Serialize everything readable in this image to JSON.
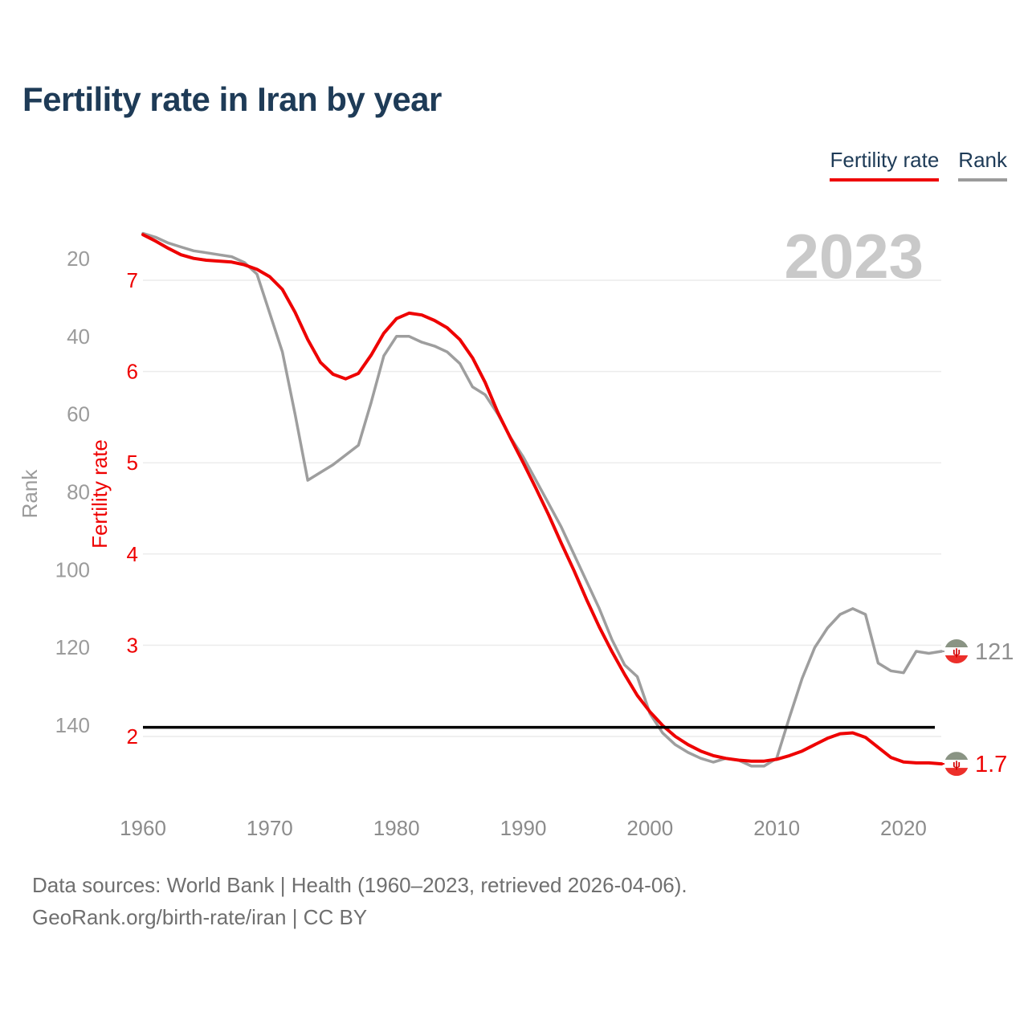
{
  "header": {
    "title": "Fertility rate in Iran by year"
  },
  "legend": [
    {
      "label": "Fertility rate",
      "color": "#ee0000"
    },
    {
      "label": "Rank",
      "color": "#9b9b9b"
    }
  ],
  "footer": {
    "line1": "Data sources: World Bank | Health (1960–2023, retrieved 2026-04-06).",
    "line2": "GeoRank.org/birth-rate/iran | CC BY"
  },
  "colors": {
    "accent_red": "#ee0000",
    "rank_gray": "#9e9e9e",
    "tick_gray": "#9b9b9b",
    "xtick_gray": "#8c8c8c",
    "gridline": "#ececec",
    "watermark_gray": "#c9c9c9",
    "title_navy": "#1e3b57",
    "reference_black": "#000000",
    "flag_green": "#8a9484",
    "flag_white": "#ffffff",
    "flag_red": "#ec2f2a",
    "flag_emblem": "#d40000"
  },
  "chart_data": {
    "type": "line",
    "title": "Fertility rate in Iran by year",
    "year_label": "2023",
    "x_label": "",
    "x_ticks": [
      1960,
      1970,
      1980,
      1990,
      2000,
      2010,
      2020
    ],
    "years": [
      1960,
      1961,
      1962,
      1963,
      1964,
      1965,
      1966,
      1967,
      1968,
      1969,
      1970,
      1971,
      1972,
      1973,
      1974,
      1975,
      1976,
      1977,
      1978,
      1979,
      1980,
      1981,
      1982,
      1983,
      1984,
      1985,
      1986,
      1987,
      1988,
      1989,
      1990,
      1991,
      1992,
      1993,
      1994,
      1995,
      1996,
      1997,
      1998,
      1999,
      2000,
      2001,
      2002,
      2003,
      2004,
      2005,
      2006,
      2007,
      2008,
      2009,
      2010,
      2011,
      2012,
      2013,
      2014,
      2015,
      2016,
      2017,
      2018,
      2019,
      2020,
      2021,
      2022,
      2023
    ],
    "fertility_axis": {
      "label": "Fertility rate",
      "ticks": [
        7,
        6,
        5,
        4,
        3,
        2
      ],
      "range": [
        1.6,
        7.6
      ]
    },
    "rank_axis": {
      "label": "Rank",
      "ticks": [
        20,
        40,
        60,
        80,
        100,
        120,
        140
      ],
      "range": [
        10,
        152
      ]
    },
    "series": [
      {
        "name": "Fertility rate",
        "axis": "fertility",
        "color": "#ee0000",
        "values": [
          7.5,
          7.43,
          7.35,
          7.28,
          7.24,
          7.22,
          7.21,
          7.2,
          7.17,
          7.12,
          7.04,
          6.9,
          6.65,
          6.35,
          6.1,
          5.97,
          5.92,
          5.98,
          6.18,
          6.42,
          6.58,
          6.64,
          6.62,
          6.56,
          6.48,
          6.35,
          6.15,
          5.88,
          5.55,
          5.27,
          5.0,
          4.72,
          4.43,
          4.12,
          3.82,
          3.5,
          3.2,
          2.93,
          2.68,
          2.45,
          2.27,
          2.12,
          2.0,
          1.91,
          1.84,
          1.79,
          1.76,
          1.74,
          1.73,
          1.73,
          1.75,
          1.79,
          1.84,
          1.91,
          1.98,
          2.03,
          2.04,
          1.99,
          1.88,
          1.77,
          1.72,
          1.71,
          1.71,
          1.7
        ]
      },
      {
        "name": "Rank",
        "axis": "rank",
        "color": "#9e9e9e",
        "values": [
          13.5,
          14.5,
          16,
          17,
          18,
          18.5,
          19,
          19.5,
          21,
          24,
          34,
          44,
          60,
          77,
          75,
          73,
          70.5,
          68,
          57,
          45,
          40,
          40,
          41.5,
          42.5,
          44,
          47,
          53,
          55,
          60,
          66,
          71,
          77,
          83,
          89,
          96,
          103,
          110,
          118,
          124.5,
          127.5,
          137,
          142,
          145,
          147,
          148.5,
          149.5,
          148.5,
          149,
          150.5,
          150.5,
          148.5,
          138,
          128,
          120,
          115,
          111.5,
          110,
          111.5,
          124,
          126,
          126.5,
          121,
          121.5,
          121
        ]
      }
    ],
    "reference_line": {
      "axis": "fertility",
      "value": 2.1,
      "color": "#000000"
    },
    "end_labels": [
      {
        "series": "Rank",
        "text": "121",
        "color": "#8f8f8f"
      },
      {
        "series": "Fertility rate",
        "text": "1.7",
        "color": "#ee0000"
      }
    ],
    "grid": "horizontal gridlines at fertility ticks only",
    "legend_position": "top-right"
  }
}
